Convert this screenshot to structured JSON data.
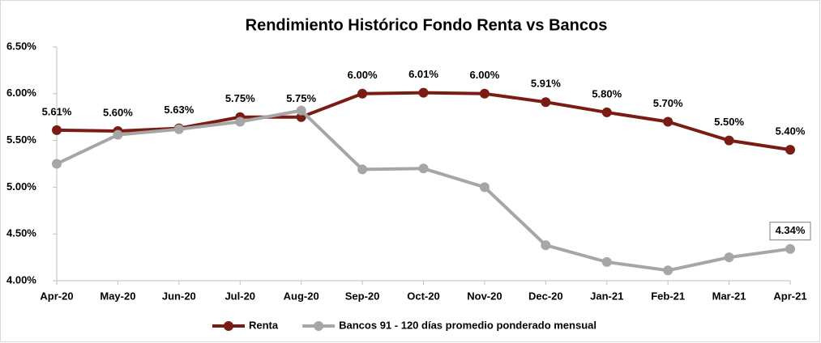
{
  "chart_data": {
    "type": "line",
    "title": "Rendimiento Histórico Fondo Renta vs Bancos",
    "categories": [
      "Apr-20",
      "May-20",
      "Jun-20",
      "Jul-20",
      "Aug-20",
      "Sep-20",
      "Oct-20",
      "Nov-20",
      "Dec-20",
      "Jan-21",
      "Feb-21",
      "Mar-21",
      "Apr-21"
    ],
    "series": [
      {
        "name": "Renta",
        "color": "#7b1c14",
        "values": [
          5.61,
          5.6,
          5.63,
          5.75,
          5.75,
          6.0,
          6.01,
          6.0,
          5.91,
          5.8,
          5.7,
          5.5,
          5.4
        ],
        "value_labels": [
          "5.61%",
          "5.60%",
          "5.63%",
          "5.75%",
          "5.75%",
          "6.00%",
          "6.01%",
          "6.00%",
          "5.91%",
          "5.80%",
          "5.70%",
          "5.50%",
          "5.40%"
        ]
      },
      {
        "name": "Bancos 91 - 120 días promedio ponderado mensual",
        "color": "#a6a6a6",
        "values": [
          5.25,
          5.56,
          5.62,
          5.7,
          5.82,
          5.19,
          5.2,
          5.0,
          4.38,
          4.2,
          4.11,
          4.25,
          4.34
        ],
        "value_labels": [
          null,
          null,
          null,
          null,
          null,
          null,
          null,
          null,
          null,
          null,
          null,
          null,
          "4.34%"
        ]
      }
    ],
    "ylim": [
      4.0,
      6.5
    ],
    "yticks": [
      {
        "value": 4.0,
        "label": "4.00%"
      },
      {
        "value": 4.5,
        "label": "4.50%"
      },
      {
        "value": 5.0,
        "label": "5.00%"
      },
      {
        "value": 5.5,
        "label": "5.50%"
      },
      {
        "value": 6.0,
        "label": "6.00%"
      },
      {
        "value": 6.5,
        "label": "6.50%"
      }
    ],
    "legend": "bottom"
  }
}
